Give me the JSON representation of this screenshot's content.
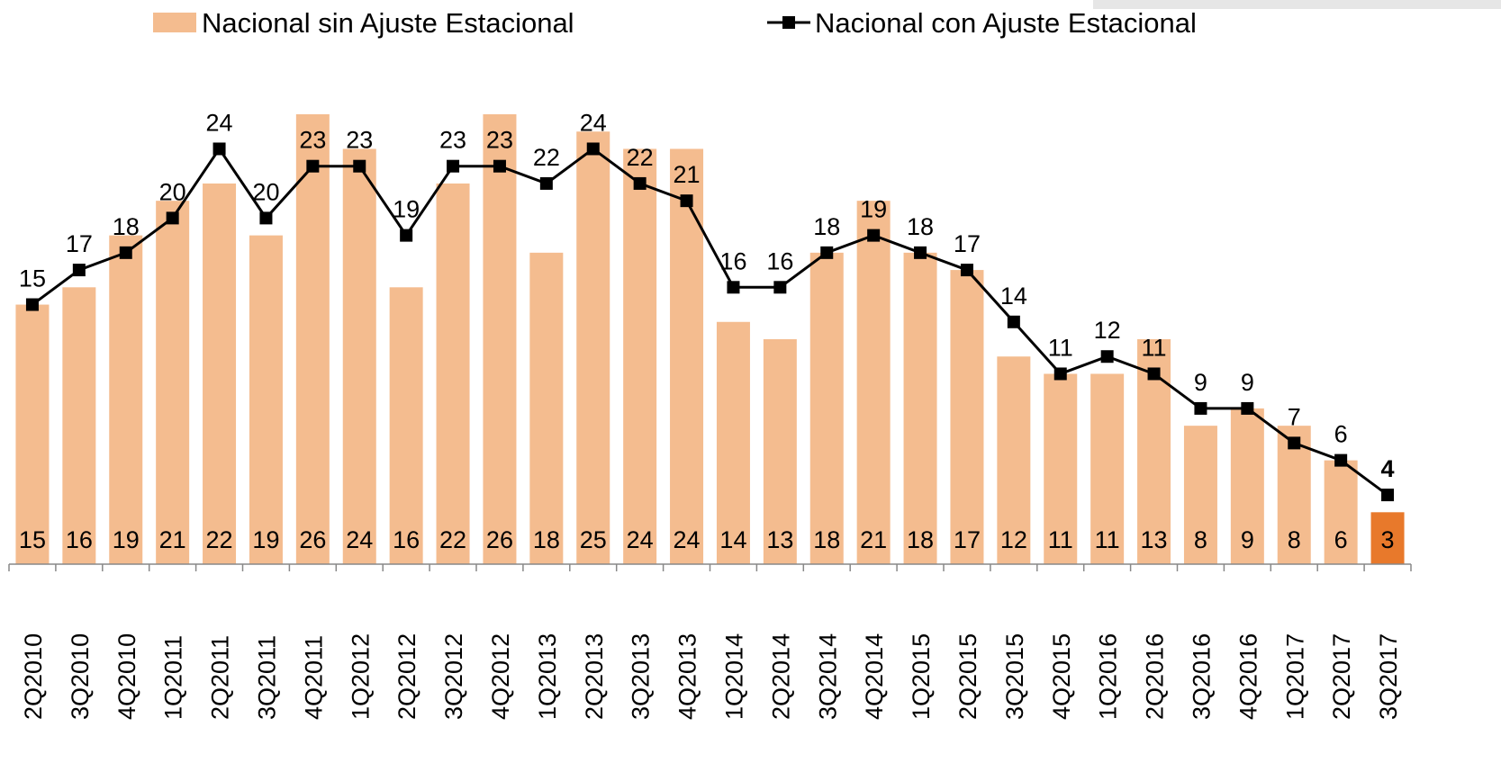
{
  "chart_data": {
    "type": "bar-line",
    "categories": [
      "2Q2010",
      "3Q2010",
      "4Q2010",
      "1Q2011",
      "2Q2011",
      "3Q2011",
      "4Q2011",
      "1Q2012",
      "2Q2012",
      "3Q2012",
      "4Q2012",
      "1Q2013",
      "2Q2013",
      "3Q2013",
      "4Q2013",
      "1Q2014",
      "2Q2014",
      "3Q2014",
      "4Q2014",
      "1Q2015",
      "2Q2015",
      "3Q2015",
      "4Q2015",
      "1Q2016",
      "2Q2016",
      "3Q2016",
      "4Q2016",
      "1Q2017",
      "2Q2017",
      "3Q2017"
    ],
    "series": [
      {
        "name": "Nacional sin Ajuste Estacional",
        "type": "bar",
        "color": "#f4bc8f",
        "colors": [
          "#f4bc8f",
          "#f4bc8f",
          "#f4bc8f",
          "#f4bc8f",
          "#f4bc8f",
          "#f4bc8f",
          "#f4bc8f",
          "#f4bc8f",
          "#f4bc8f",
          "#f4bc8f",
          "#f4bc8f",
          "#f4bc8f",
          "#f4bc8f",
          "#f4bc8f",
          "#f4bc8f",
          "#f4bc8f",
          "#f4bc8f",
          "#f4bc8f",
          "#f4bc8f",
          "#f4bc8f",
          "#f4bc8f",
          "#f4bc8f",
          "#f4bc8f",
          "#f4bc8f",
          "#f4bc8f",
          "#f4bc8f",
          "#f4bc8f",
          "#f4bc8f",
          "#f4bc8f",
          "#e8792b"
        ],
        "values": [
          15,
          16,
          19,
          21,
          22,
          19,
          26,
          24,
          16,
          22,
          26,
          18,
          25,
          24,
          24,
          14,
          13,
          18,
          21,
          18,
          17,
          12,
          11,
          11,
          13,
          8,
          9,
          8,
          6,
          3
        ]
      },
      {
        "name": "Nacional con Ajuste Estacional",
        "type": "line",
        "color": "#000000",
        "values": [
          15,
          17,
          18,
          20,
          24,
          20,
          23,
          23,
          19,
          23,
          23,
          22,
          24,
          22,
          21,
          16,
          16,
          18,
          19,
          18,
          17,
          14,
          11,
          12,
          11,
          9,
          9,
          7,
          6,
          4
        ]
      }
    ],
    "ylim": [
      0,
      26
    ]
  }
}
